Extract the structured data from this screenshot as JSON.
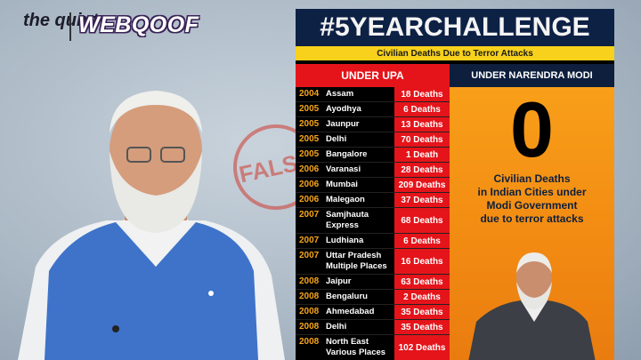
{
  "logo": {
    "brand": "the quint",
    "section": "WEBQOOF"
  },
  "stamp": "FALSE",
  "poster": {
    "title": "#5YEARCHALLENGE",
    "subtitle": "Civilian Deaths Due to Terror Attacks",
    "left_header": "UNDER UPA",
    "right_header": "UNDER NARENDRA MODI",
    "big_number": "0",
    "caption": [
      "Civilian Deaths",
      "in Indian Cities under",
      "Modi Government",
      "due to terror attacks"
    ],
    "rows": [
      [
        "2004",
        "Assam",
        "18 Deaths"
      ],
      [
        "2005",
        "Ayodhya",
        "6 Deaths"
      ],
      [
        "2005",
        "Jaunpur",
        "13 Deaths"
      ],
      [
        "2005",
        "Delhi",
        "70 Deaths"
      ],
      [
        "2005",
        "Bangalore",
        "1 Death"
      ],
      [
        "2006",
        "Varanasi",
        "28 Deaths"
      ],
      [
        "2006",
        "Mumbai",
        "209 Deaths"
      ],
      [
        "2006",
        "Malegaon",
        "37 Deaths"
      ],
      [
        "2007",
        "Samjhauta Express",
        "68 Deaths"
      ],
      [
        "2007",
        "Ludhiana",
        "6 Deaths"
      ],
      [
        "2007",
        "Uttar Pradesh Multiple Places",
        "16 Deaths"
      ],
      [
        "2008",
        "Jaipur",
        "63 Deaths"
      ],
      [
        "2008",
        "Bengaluru",
        "2 Deaths"
      ],
      [
        "2008",
        "Ahmedabad",
        "35 Deaths"
      ],
      [
        "2008",
        "Delhi",
        "35 Deaths"
      ],
      [
        "2008",
        "North East Various Places",
        "102 Deaths"
      ]
    ]
  }
}
